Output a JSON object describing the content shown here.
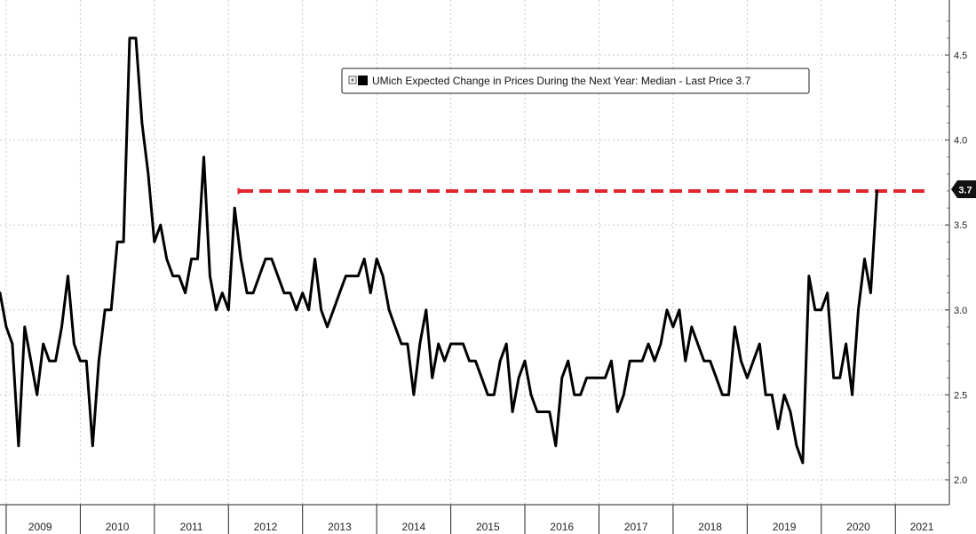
{
  "chart_data": {
    "type": "line",
    "title": "",
    "legend": {
      "label": "UMich Expected Change in Prices During the Next Year: Median - Last Price 3.7",
      "placement": "top-center"
    },
    "xlabel": "",
    "ylabel": "",
    "ylim": [
      1.85,
      4.8
    ],
    "y_ticks": [
      2.0,
      2.5,
      3.0,
      3.5,
      4.0,
      4.5
    ],
    "y_tick_labels": [
      "2.0",
      "2.5",
      "3.0",
      "3.5",
      "4.0",
      "4.5"
    ],
    "x_start_month": "2008-12",
    "x_end_month": "2021-06",
    "year_labels": [
      "2009",
      "2010",
      "2011",
      "2012",
      "2013",
      "2014",
      "2015",
      "2016",
      "2017",
      "2018",
      "2019",
      "2020",
      "2021"
    ],
    "series": [
      {
        "name": "UMich Expected Change in Prices During the Next Year: Median",
        "color": "#000000",
        "values": [
          3.1,
          2.9,
          2.8,
          2.2,
          2.9,
          2.7,
          2.5,
          2.8,
          2.7,
          2.7,
          2.9,
          3.2,
          2.8,
          2.7,
          2.7,
          2.2,
          2.7,
          3.0,
          3.0,
          3.4,
          3.4,
          4.6,
          4.6,
          4.1,
          3.8,
          3.4,
          3.5,
          3.3,
          3.2,
          3.2,
          3.1,
          3.3,
          3.3,
          3.9,
          3.2,
          3.0,
          3.1,
          3.0,
          3.6,
          3.3,
          3.1,
          3.1,
          3.2,
          3.3,
          3.3,
          3.2,
          3.1,
          3.1,
          3.0,
          3.1,
          3.0,
          3.3,
          3.0,
          2.9,
          3.0,
          3.1,
          3.2,
          3.2,
          3.2,
          3.3,
          3.1,
          3.3,
          3.2,
          3.0,
          2.9,
          2.8,
          2.8,
          2.5,
          2.8,
          3.0,
          2.6,
          2.8,
          2.7,
          2.8,
          2.8,
          2.8,
          2.7,
          2.7,
          2.6,
          2.5,
          2.5,
          2.7,
          2.8,
          2.4,
          2.6,
          2.7,
          2.5,
          2.4,
          2.4,
          2.4,
          2.2,
          2.6,
          2.7,
          2.5,
          2.5,
          2.6,
          2.6,
          2.6,
          2.6,
          2.7,
          2.4,
          2.5,
          2.7,
          2.7,
          2.7,
          2.8,
          2.7,
          2.8,
          3.0,
          2.9,
          3.0,
          2.7,
          2.9,
          2.8,
          2.7,
          2.7,
          2.6,
          2.5,
          2.5,
          2.9,
          2.7,
          2.6,
          2.7,
          2.8,
          2.5,
          2.5,
          2.3,
          2.5,
          2.4,
          2.2,
          2.1,
          3.2,
          3.0,
          3.0,
          3.1,
          2.6,
          2.6,
          2.8,
          2.5,
          3.0,
          3.3,
          3.1,
          3.7
        ]
      }
    ],
    "last_value_label": "3.7",
    "annotation": {
      "type": "dashed-arrow",
      "color": "#e3262e",
      "level": 3.7,
      "from_month": "2021-06",
      "to_month": "2012-01"
    }
  }
}
